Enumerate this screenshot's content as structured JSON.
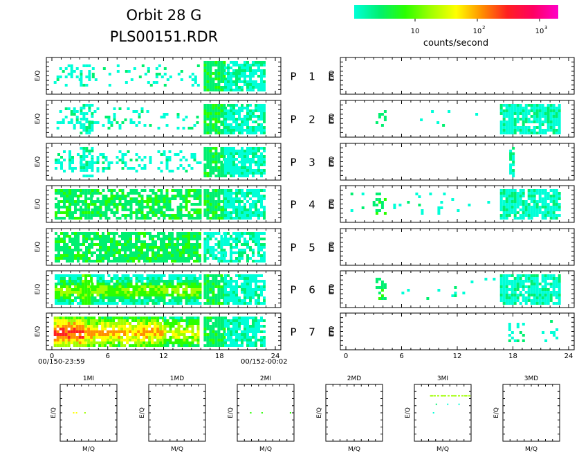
{
  "header": {
    "title_line1": "Orbit 28 G",
    "title_line2": "PLS00151.RDR"
  },
  "colorbar": {
    "colors": [
      "#00ffd8",
      "#00f070",
      "#2bff00",
      "#a0ff00",
      "#ffff00",
      "#ff9000",
      "#ff2020",
      "#ff0060",
      "#ff00c8"
    ],
    "tick_labels": [
      "10",
      "10",
      "10"
    ],
    "tick_exponents": [
      "",
      "2",
      "3"
    ],
    "label": "counts/second"
  },
  "panel_rows": [
    {
      "label": "P",
      "num": "1",
      "type": "E"
    },
    {
      "label": "P",
      "num": "2",
      "type": "E"
    },
    {
      "label": "P",
      "num": "3",
      "type": "E"
    },
    {
      "label": "P",
      "num": "4",
      "type": "E"
    },
    {
      "label": "P",
      "num": "5",
      "type": "E"
    },
    {
      "label": "P",
      "num": "6",
      "type": "E"
    },
    {
      "label": "P",
      "num": "7",
      "type": "E"
    }
  ],
  "axis": {
    "y_label": "E/Q",
    "x_ticks": [
      "0",
      "6",
      "12",
      "18",
      "24"
    ],
    "x_tick_values": [
      0,
      6,
      12,
      18,
      24
    ],
    "left_start_time": "00/150-23:59",
    "left_end_time": "00/152-00:02"
  },
  "bottom_plots": [
    {
      "title": "1MI",
      "ylabel": "E/Q",
      "xlabel": "M/Q"
    },
    {
      "title": "1MD",
      "ylabel": "E/Q",
      "xlabel": "M/Q"
    },
    {
      "title": "2MI",
      "ylabel": "E/Q",
      "xlabel": "M/Q"
    },
    {
      "title": "2MD",
      "ylabel": "E/Q",
      "xlabel": "M/Q"
    },
    {
      "title": "3MI",
      "ylabel": "E/Q",
      "xlabel": "M/Q"
    },
    {
      "title": "3MD",
      "ylabel": "E/Q",
      "xlabel": "M/Q"
    }
  ],
  "chart_data": {
    "type": "heatmap",
    "x_range_hours": [
      0,
      24
    ],
    "color_scale_units": "counts/second",
    "color_scale": "log",
    "left_column_panels": [
      {
        "row": "1",
        "bands": [
          {
            "x": [
              0.2,
              3.0
            ],
            "level": 0,
            "fill": 0.35
          },
          {
            "x": [
              3.0,
              4.0
            ],
            "level": 0,
            "fill": 0.6
          },
          {
            "x": [
              4.0,
              16.0
            ],
            "level": 0,
            "fill": 0.15
          },
          {
            "x": [
              16.3,
              18.5
            ],
            "level": 1,
            "fill": 0.95
          },
          {
            "x": [
              18.5,
              22.8
            ],
            "level": 0,
            "fill": 0.8
          }
        ]
      },
      {
        "row": "2",
        "bands": [
          {
            "x": [
              0.5,
              3.0
            ],
            "level": 0,
            "fill": 0.4
          },
          {
            "x": [
              3.0,
              4.2
            ],
            "level": 0,
            "fill": 0.7
          },
          {
            "x": [
              4.2,
              15.5
            ],
            "level": 0,
            "fill": 0.2
          },
          {
            "x": [
              16.3,
              18.5
            ],
            "level": 1,
            "fill": 0.9
          },
          {
            "x": [
              18.5,
              22.8
            ],
            "level": 0,
            "fill": 0.8
          }
        ]
      },
      {
        "row": "3",
        "bands": [
          {
            "x": [
              0.3,
              3.0
            ],
            "level": 0,
            "fill": 0.5
          },
          {
            "x": [
              3.0,
              4.2
            ],
            "level": 0,
            "fill": 0.7
          },
          {
            "x": [
              4.2,
              15.8
            ],
            "level": 0,
            "fill": 0.35
          },
          {
            "x": [
              16.3,
              18.5
            ],
            "level": 1,
            "fill": 0.9
          },
          {
            "x": [
              18.5,
              22.8
            ],
            "level": 0,
            "fill": 0.8
          }
        ]
      },
      {
        "row": "4",
        "bands": [
          {
            "x": [
              0.3,
              3.2
            ],
            "level": 1,
            "fill": 0.75
          },
          {
            "x": [
              3.2,
              4.2
            ],
            "level": 1,
            "fill": 0.85
          },
          {
            "x": [
              4.2,
              15.8
            ],
            "level": 1,
            "fill": 0.7
          },
          {
            "x": [
              16.3,
              18.5
            ],
            "level": 1,
            "fill": 0.9
          },
          {
            "x": [
              18.5,
              22.8
            ],
            "level": 0,
            "fill": 0.8
          }
        ]
      },
      {
        "row": "5",
        "bands": [
          {
            "x": [
              0.3,
              15.8
            ],
            "level": 1,
            "fill": 0.85
          },
          {
            "x": [
              16.3,
              18.5
            ],
            "level": 0,
            "fill": 0.8
          },
          {
            "x": [
              18.5,
              22.8
            ],
            "level": 0,
            "fill": 0.7
          }
        ]
      },
      {
        "row": "6",
        "bands": [
          {
            "x": [
              0.3,
              3.2
            ],
            "level": 3,
            "fill": 0.9
          },
          {
            "x": [
              3.2,
              4.2
            ],
            "level": 2,
            "fill": 0.9
          },
          {
            "x": [
              4.2,
              15.8
            ],
            "level": 3,
            "fill": 0.85
          },
          {
            "x": [
              16.3,
              18.5
            ],
            "level": 1,
            "fill": 0.9
          },
          {
            "x": [
              18.5,
              22.8
            ],
            "level": 0,
            "fill": 0.8
          }
        ]
      },
      {
        "row": "7",
        "bands": [
          {
            "x": [
              0.2,
              3.5
            ],
            "level": 6,
            "fill": 0.95
          },
          {
            "x": [
              3.5,
              12.0
            ],
            "level": 5,
            "fill": 0.9
          },
          {
            "x": [
              12.0,
              15.8
            ],
            "level": 4,
            "fill": 0.85
          },
          {
            "x": [
              16.3,
              18.5
            ],
            "level": 1,
            "fill": 0.9
          },
          {
            "x": [
              18.5,
              22.8
            ],
            "level": 0,
            "fill": 0.8
          }
        ]
      }
    ],
    "right_column_panels": [
      {
        "row": "1",
        "bands": []
      },
      {
        "row": "2",
        "bands": [
          {
            "x": [
              3.2,
              4.2
            ],
            "level": 1,
            "fill": 0.4
          },
          {
            "x": [
              5.0,
              16.0
            ],
            "level": 0,
            "fill": 0.02
          },
          {
            "x": [
              16.6,
              23.0
            ],
            "level": 0,
            "fill": 0.85
          }
        ]
      },
      {
        "row": "3",
        "bands": [
          {
            "x": [
              17.6,
              17.9
            ],
            "level": 0,
            "fill": 0.8
          }
        ]
      },
      {
        "row": "4",
        "bands": [
          {
            "x": [
              0.5,
              3.2
            ],
            "level": 0,
            "fill": 0.15
          },
          {
            "x": [
              3.2,
              4.2
            ],
            "level": 1,
            "fill": 0.5
          },
          {
            "x": [
              4.2,
              16.0
            ],
            "level": 0,
            "fill": 0.06
          },
          {
            "x": [
              16.6,
              23.0
            ],
            "level": 0,
            "fill": 0.85
          }
        ]
      },
      {
        "row": "5",
        "bands": []
      },
      {
        "row": "6",
        "bands": [
          {
            "x": [
              3.2,
              4.2
            ],
            "level": 1,
            "fill": 0.45
          },
          {
            "x": [
              4.2,
              16.0
            ],
            "level": 0,
            "fill": 0.03
          },
          {
            "x": [
              16.6,
              23.0
            ],
            "level": 0,
            "fill": 0.85
          }
        ]
      },
      {
        "row": "7",
        "bands": [
          {
            "x": [
              17.5,
              19.2
            ],
            "level": 0,
            "fill": 0.3
          },
          {
            "x": [
              20.8,
              22.8
            ],
            "level": 0,
            "fill": 0.15
          }
        ]
      }
    ],
    "mass_spectra": [
      {
        "panel": "1MI",
        "points": [
          {
            "m": 0.25,
            "e": 0.5,
            "level": 4
          },
          {
            "m": 0.3,
            "e": 0.5,
            "level": 4
          },
          {
            "m": 0.45,
            "e": 0.5,
            "level": 3
          }
        ]
      },
      {
        "panel": "1MD",
        "points": []
      },
      {
        "panel": "2MI",
        "points": [
          {
            "m": 0.25,
            "e": 0.5,
            "level": 2
          },
          {
            "m": 0.45,
            "e": 0.5,
            "level": 2
          },
          {
            "m": 0.95,
            "e": 0.5,
            "level": 2
          }
        ]
      },
      {
        "panel": "2MD",
        "points": []
      },
      {
        "panel": "3MI",
        "points": [
          {
            "m": 0.3,
            "e": 0.2,
            "level": 3
          },
          {
            "m": 0.5,
            "e": 0.2,
            "level": 3
          },
          {
            "m": 0.7,
            "e": 0.2,
            "level": 3
          },
          {
            "m": 0.9,
            "e": 0.2,
            "level": 3
          },
          {
            "m": 0.4,
            "e": 0.35,
            "level": 1
          },
          {
            "m": 0.6,
            "e": 0.35,
            "level": 0
          },
          {
            "m": 0.8,
            "e": 0.35,
            "level": 0
          },
          {
            "m": 0.35,
            "e": 0.5,
            "level": 0
          }
        ]
      },
      {
        "panel": "3MD",
        "points": []
      }
    ]
  }
}
